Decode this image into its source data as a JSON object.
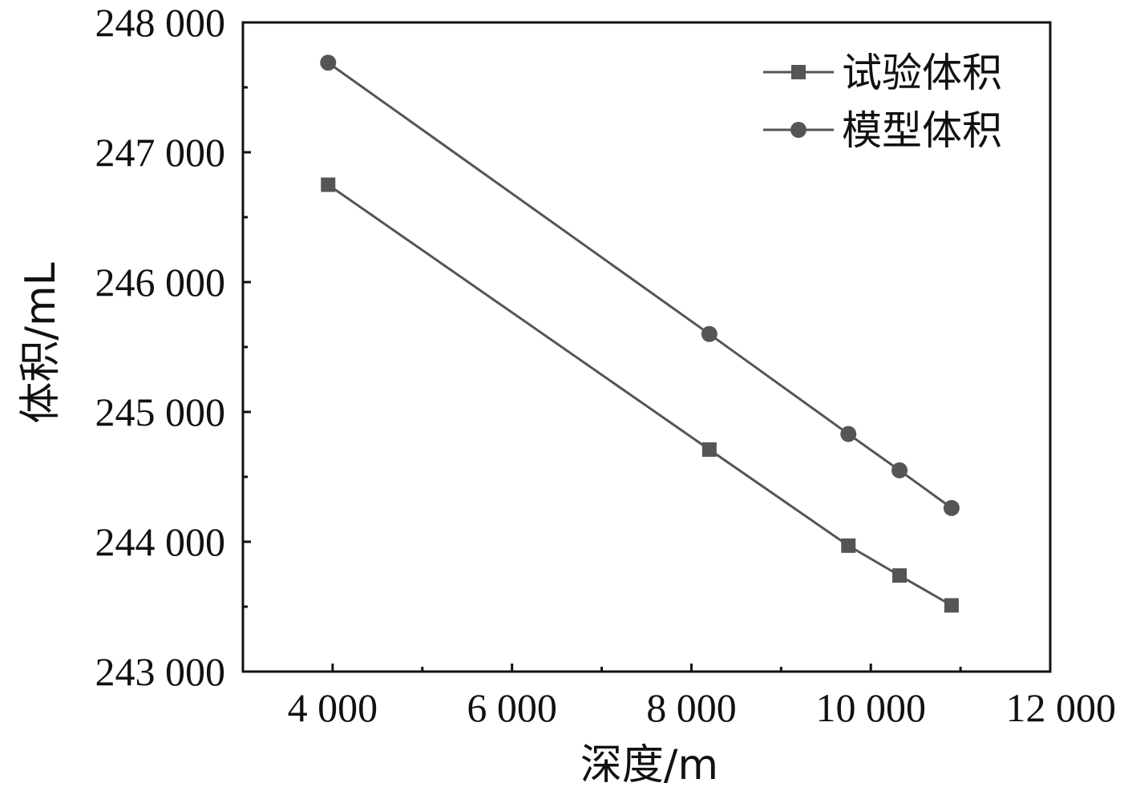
{
  "chart_data": {
    "type": "line",
    "title": "",
    "xlabel": "深度/m",
    "ylabel": "体积/mL",
    "xlim": [
      3000,
      12000
    ],
    "ylim": [
      243000,
      248000
    ],
    "x_ticks": [
      4000,
      6000,
      8000,
      10000,
      12000
    ],
    "x_tick_labels": [
      "4 000",
      "6 000",
      "8 000",
      "10 000",
      "12 000"
    ],
    "y_ticks": [
      243000,
      244000,
      245000,
      246000,
      247000,
      248000
    ],
    "y_tick_labels": [
      "243 000",
      "244 000",
      "245 000",
      "246 000",
      "247 000",
      "248 000"
    ],
    "grid": false,
    "legend_position": "top-right",
    "series": [
      {
        "name": "试验体积",
        "marker": "square",
        "color": "#555555",
        "x": [
          3950,
          8200,
          9750,
          10320,
          10900
        ],
        "y": [
          246750,
          244710,
          243970,
          243740,
          243510
        ]
      },
      {
        "name": "模型体积",
        "marker": "circle",
        "color": "#555555",
        "x": [
          3950,
          8200,
          9750,
          10320,
          10900
        ],
        "y": [
          247690,
          245600,
          244830,
          244550,
          244260
        ]
      }
    ]
  }
}
